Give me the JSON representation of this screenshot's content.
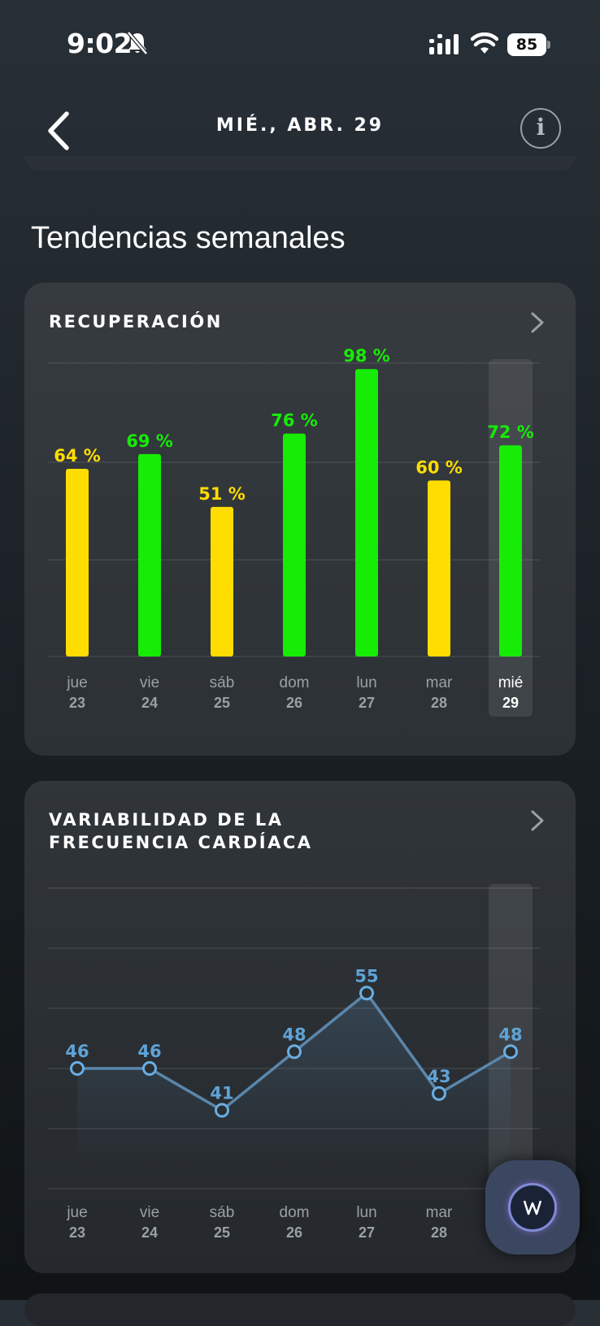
{
  "status_bar": {
    "time": "9:02",
    "battery": "85"
  },
  "header": {
    "title": "MIÉ., ABR. 29"
  },
  "section_title": "Tendencias semanales",
  "days": [
    {
      "day": "jue",
      "num": "23"
    },
    {
      "day": "vie",
      "num": "24"
    },
    {
      "day": "sáb",
      "num": "25"
    },
    {
      "day": "dom",
      "num": "26"
    },
    {
      "day": "lun",
      "num": "27"
    },
    {
      "day": "mar",
      "num": "28"
    },
    {
      "day": "mié",
      "num": "29"
    }
  ],
  "recovery": {
    "title": "RECUPERACIÓN",
    "unit": "%",
    "values": [
      64,
      69,
      51,
      76,
      98,
      60,
      72
    ],
    "labels": [
      "64 %",
      "69 %",
      "51 %",
      "76 %",
      "98 %",
      "60 %",
      "72 %"
    ],
    "colors": [
      "#ffdd00",
      "#16ec06",
      "#ffdd00",
      "#16ec06",
      "#16ec06",
      "#ffdd00",
      "#16ec06"
    ],
    "selected_index": 6
  },
  "hrv": {
    "title_line1": "VARIABILIDAD DE LA",
    "title_line2": "FRECUENCIA CARDÍACA",
    "values": [
      46,
      46,
      41,
      48,
      55,
      43,
      48
    ],
    "labels": [
      "46",
      "46",
      "41",
      "48",
      "55",
      "43",
      "48"
    ],
    "selected_index": 6
  },
  "chart_data": [
    {
      "type": "bar",
      "title": "RECUPERACIÓN",
      "categories": [
        "jue 23",
        "vie 24",
        "sáb 25",
        "dom 26",
        "lun 27",
        "mar 28",
        "mié 29"
      ],
      "values": [
        64,
        69,
        51,
        76,
        98,
        60,
        72
      ],
      "unit": "%",
      "ylim": [
        0,
        100
      ],
      "grid": true
    },
    {
      "type": "line",
      "title": "VARIABILIDAD DE LA FRECUENCIA CARDÍACA",
      "categories": [
        "jue 23",
        "vie 24",
        "sáb 25",
        "dom 26",
        "lun 27",
        "mar 28",
        "mié 29"
      ],
      "values": [
        46,
        46,
        41,
        48,
        55,
        43,
        48
      ],
      "grid": true
    }
  ],
  "colors": {
    "recovery_high": "#16ec06",
    "recovery_mid": "#ffdd00",
    "hrv_line": "#5fa3d6"
  }
}
